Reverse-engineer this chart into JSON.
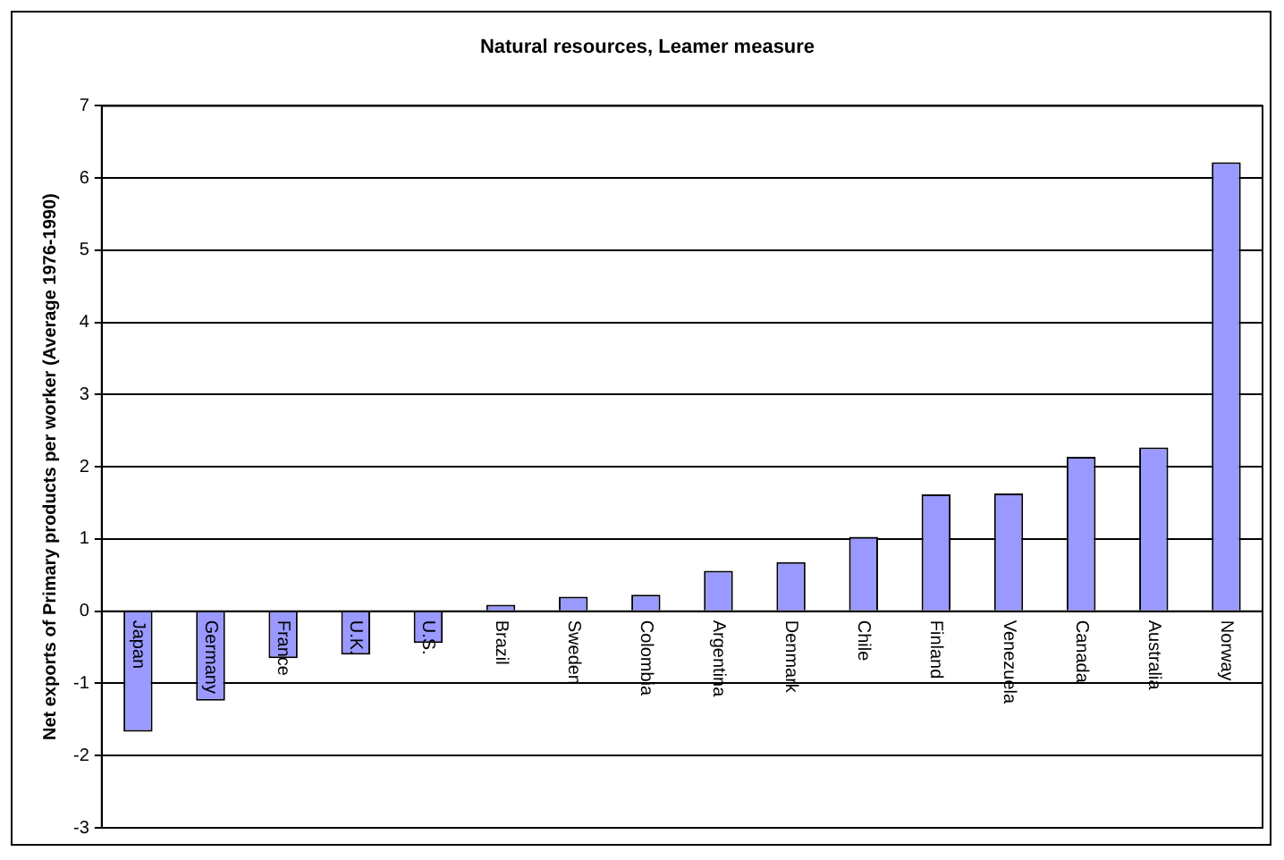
{
  "chart_data": {
    "type": "bar",
    "title": "Natural resources, Leamer measure",
    "ylabel": "Net exports of Primary products per worker (Average 1976-1990)",
    "categories": [
      "Japan",
      "Germany",
      "France",
      "U.K.",
      "U.S.",
      "Brazil",
      "Sweden",
      "Colombia",
      "Argentina",
      "Denmark",
      "Chile",
      "Finland",
      "Venezuela",
      "Canada",
      "Australia",
      "Norway"
    ],
    "values": [
      -1.67,
      -1.24,
      -0.65,
      -0.6,
      -0.44,
      0.09,
      0.2,
      0.23,
      0.56,
      0.68,
      1.03,
      1.62,
      1.63,
      2.14,
      2.27,
      6.22
    ],
    "color": "#9999ff",
    "ylim": [
      -3,
      7
    ],
    "yticks": [
      -3,
      -2,
      -1,
      0,
      1,
      2,
      3,
      4,
      5,
      6,
      7
    ],
    "grid": "y",
    "legend": false
  }
}
